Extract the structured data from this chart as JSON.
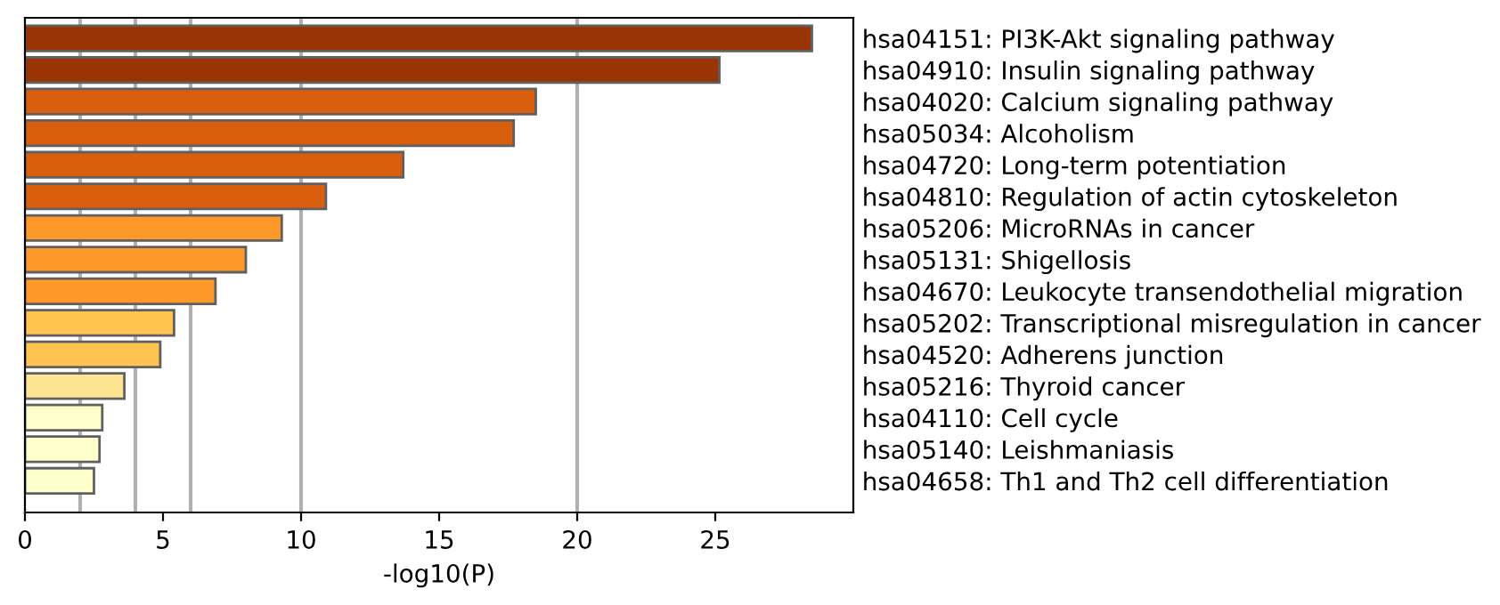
{
  "chart_data": {
    "type": "bar",
    "orientation": "horizontal",
    "xlabel": "-log10(P)",
    "categories": [
      "hsa04151: PI3K-Akt signaling pathway",
      "hsa04910: Insulin signaling pathway",
      "hsa04020: Calcium signaling pathway",
      "hsa05034: Alcoholism",
      "hsa04720: Long-term potentiation",
      "hsa04810: Regulation of actin cytoskeleton",
      "hsa05206: MicroRNAs in cancer",
      "hsa05131: Shigellosis",
      "hsa04670: Leukocyte transendothelial migration",
      "hsa05202: Transcriptional misregulation in cancer",
      "hsa04520: Adherens junction",
      "hsa05216: Thyroid cancer",
      "hsa04110: Cell cycle",
      "hsa05140: Leishmaniasis",
      "hsa04658: Th1 and Th2 cell differentiation"
    ],
    "values": [
      28.5,
      25.15,
      18.5,
      17.7,
      13.7,
      10.9,
      9.3,
      8.0,
      6.9,
      5.4,
      4.9,
      3.6,
      2.8,
      2.7,
      2.5
    ],
    "colors": [
      "#993404",
      "#993404",
      "#d95f0e",
      "#d95f0e",
      "#d95f0e",
      "#d95f0e",
      "#fe9929",
      "#fe9929",
      "#fe9929",
      "#fec44f",
      "#fec44f",
      "#fee391",
      "#ffffcc",
      "#ffffcc",
      "#ffffcc"
    ],
    "xlim": [
      0,
      30
    ],
    "xticks": [
      0,
      5,
      10,
      15,
      20,
      25
    ],
    "ref_lines": [
      {
        "axis": "x",
        "value": 2,
        "color": "#b0b0b0"
      },
      {
        "axis": "x",
        "value": 4,
        "color": "#b0b0b0"
      },
      {
        "axis": "x",
        "value": 6,
        "color": "#b0b0b0"
      },
      {
        "axis": "x",
        "value": 10,
        "color": "#b0b0b0"
      },
      {
        "axis": "x",
        "value": 20,
        "color": "#b0b0b0"
      }
    ]
  }
}
